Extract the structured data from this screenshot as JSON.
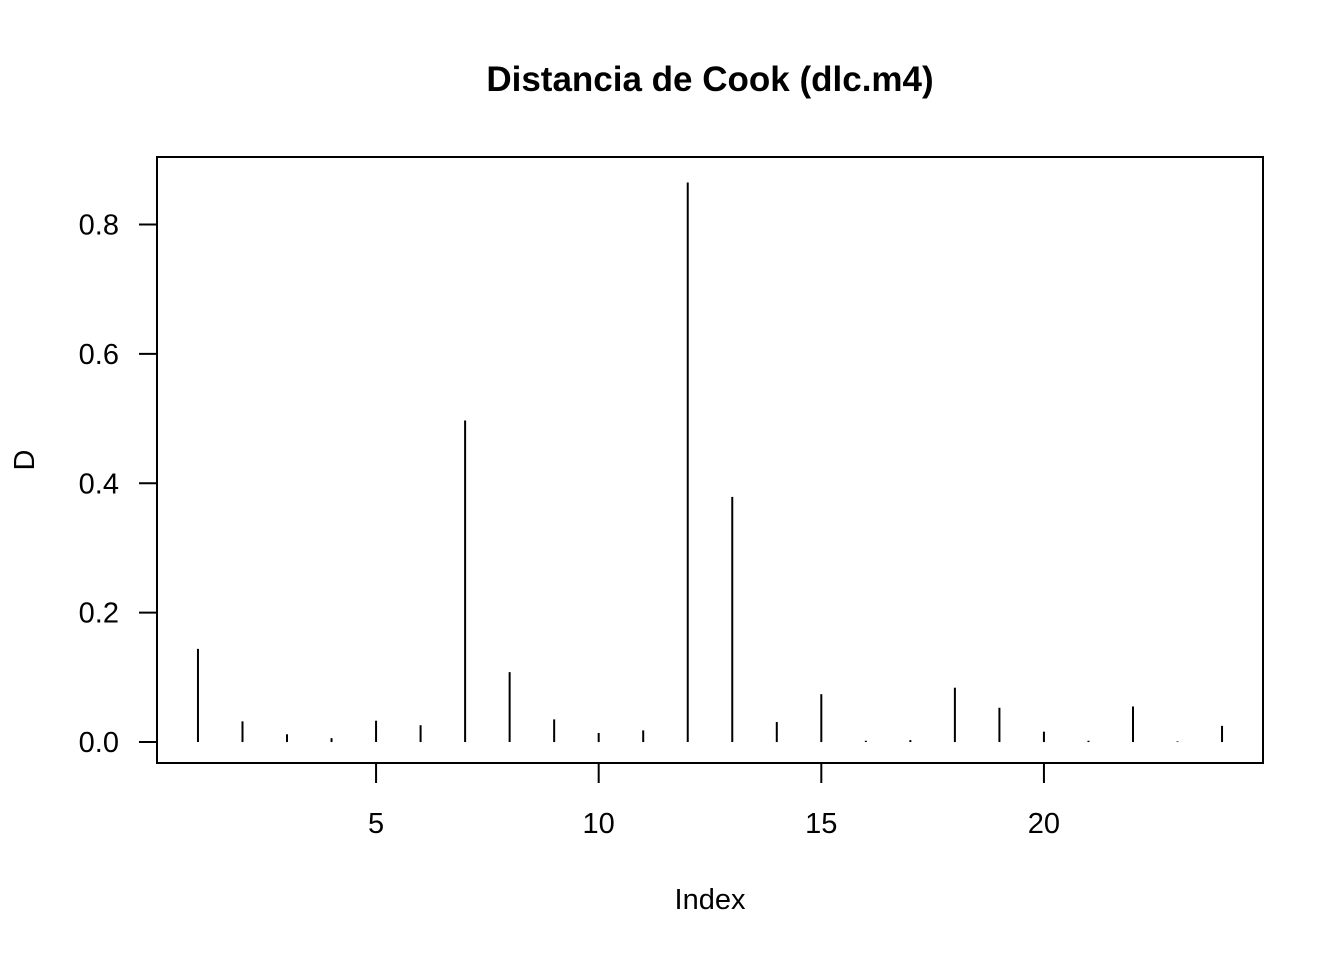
{
  "chart_data": {
    "type": "bar",
    "style": "histogram-spikes",
    "title": "Distancia de Cook (dlc.m4)",
    "xlabel": "Index",
    "ylabel": "D",
    "x": [
      1,
      2,
      3,
      4,
      5,
      6,
      7,
      8,
      9,
      10,
      11,
      12,
      13,
      14,
      15,
      16,
      17,
      18,
      19,
      20,
      21,
      22,
      23,
      24
    ],
    "values": [
      0.144,
      0.032,
      0.012,
      0.006,
      0.033,
      0.026,
      0.497,
      0.108,
      0.035,
      0.014,
      0.018,
      0.865,
      0.379,
      0.031,
      0.074,
      0.002,
      0.003,
      0.084,
      0.053,
      0.016,
      0.002,
      0.055,
      0.001,
      0.025
    ],
    "xlim": [
      0.08,
      24.92
    ],
    "ylim": [
      -0.0324,
      0.9044
    ],
    "x_ticks": [
      5,
      10,
      15,
      20
    ],
    "x_tick_labels": [
      "5",
      "10",
      "15",
      "20"
    ],
    "y_ticks": [
      0.0,
      0.2,
      0.4,
      0.6,
      0.8
    ],
    "y_tick_labels": [
      "0.0",
      "0.2",
      "0.4",
      "0.6",
      "0.8"
    ],
    "grid": false,
    "legend": "none",
    "colors": {
      "bars": "#000000",
      "axes": "#000000",
      "background": "#ffffff"
    }
  }
}
